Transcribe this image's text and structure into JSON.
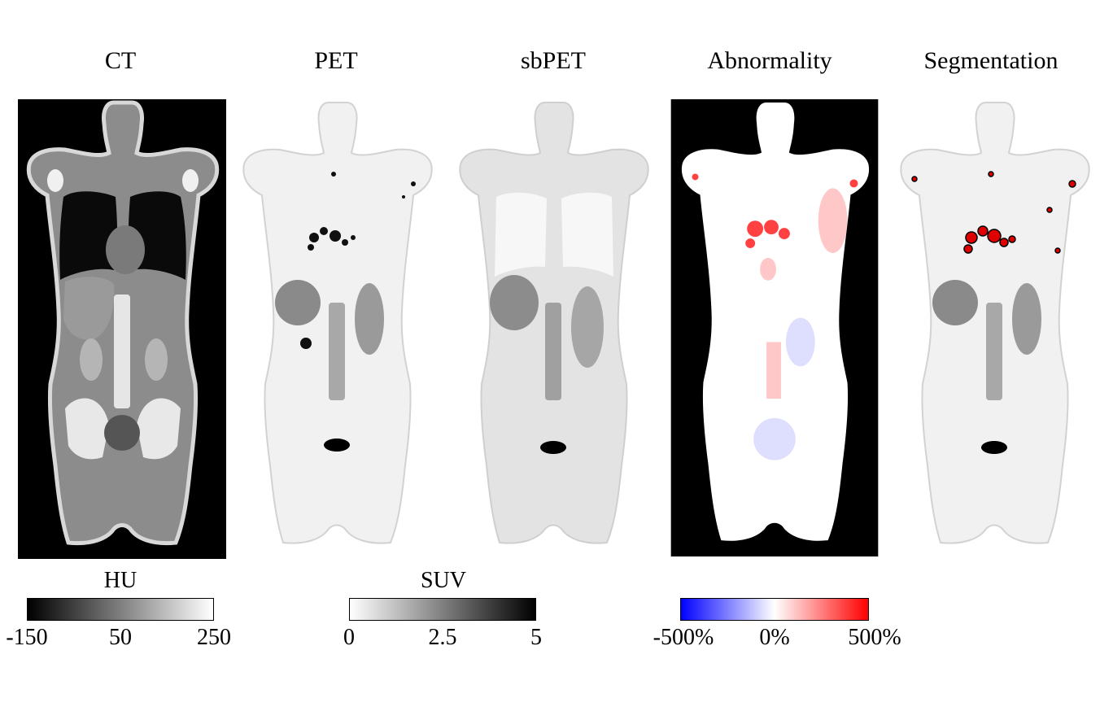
{
  "titles": {
    "ct": "CT",
    "pet": "PET",
    "sbpet": "sbPET",
    "abnormality": "Abnormality",
    "segmentation": "Segmentation"
  },
  "colorbars": {
    "hu": {
      "label": "HU",
      "ticks": [
        "-150",
        "50",
        "250"
      ],
      "colors": [
        "#000000",
        "#ffffff"
      ]
    },
    "suv": {
      "label": "SUV",
      "ticks": [
        "0",
        "2.5",
        "5"
      ],
      "colors": [
        "#ffffff",
        "#000000"
      ]
    },
    "abnormality": {
      "label": "",
      "ticks": [
        "-500%",
        "0%",
        "500%"
      ],
      "colors": [
        "#0000ff",
        "#ffffff",
        "#ff0000"
      ]
    }
  }
}
